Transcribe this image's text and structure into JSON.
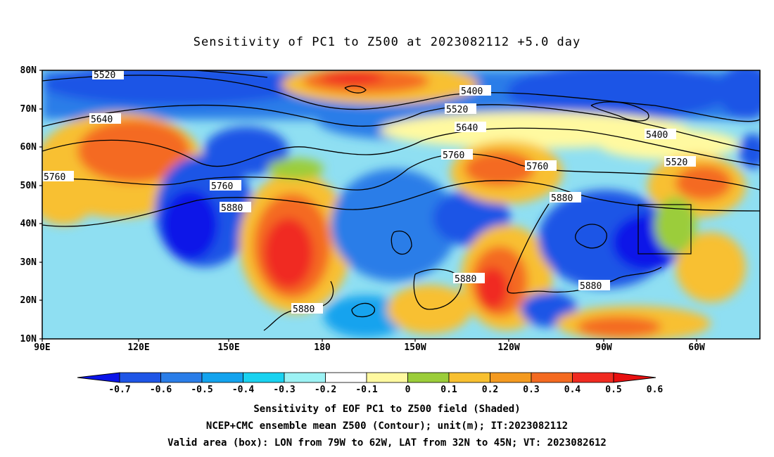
{
  "title": "Sensitivity of PC1 to Z500 at 2023082112 +5.0 day",
  "lat_labels": [
    "80N",
    "70N",
    "60N",
    "50N",
    "40N",
    "30N",
    "20N",
    "10N"
  ],
  "lon_labels": [
    "90E",
    "120E",
    "150E",
    "180",
    "150W",
    "120W",
    "90W",
    "60W"
  ],
  "contour_labels": [
    "5520",
    "5640",
    "5760",
    "5760",
    "5880",
    "5880",
    "5880",
    "5880",
    "5880",
    "5400",
    "5520",
    "5640",
    "5760",
    "5760",
    "5400",
    "5520"
  ],
  "colorbar": {
    "ticks": [
      "-0.7",
      "-0.6",
      "-0.5",
      "-0.4",
      "-0.3",
      "-0.2",
      "-0.1",
      "0",
      "0.1",
      "0.2",
      "0.3",
      "0.4",
      "0.5",
      "0.6"
    ],
    "colors": [
      "#0a14e8",
      "#1e55e6",
      "#2a7de8",
      "#13a3ee",
      "#19d2f0",
      "#9cf2f4",
      "#ffffff",
      "#fff9a0",
      "#9bcd3a",
      "#f8c030",
      "#f49a20",
      "#f46a20",
      "#f02a20",
      "#e81010"
    ]
  },
  "captions": [
    "Sensitivity of EOF PC1 to Z500 field (Shaded)",
    "NCEP+CMC ensemble mean Z500 (Contour); unit(m); IT:2023082112",
    "Valid area (box): LON from 79W to 62W, LAT from 32N to 45N; VT: 2023082612"
  ]
}
